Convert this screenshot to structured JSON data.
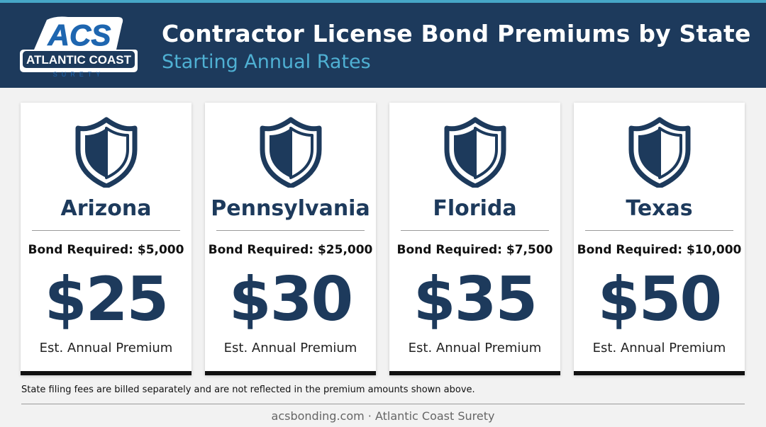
{
  "header": {
    "title": "Contractor License Bond Premiums by State",
    "subtitle": "Starting Annual Rates",
    "logo": {
      "monogram": "ACS",
      "name": "ATLANTIC COAST",
      "tagline": "SURETY"
    }
  },
  "cards": [
    {
      "state": "Arizona",
      "bond_required": "Bond Required: $5,000",
      "premium": "$25",
      "premium_label": "Est. Annual Premium"
    },
    {
      "state": "Pennsylvania",
      "bond_required": "Bond Required: $25,000",
      "premium": "$30",
      "premium_label": "Est. Annual Premium"
    },
    {
      "state": "Florida",
      "bond_required": "Bond Required: $7,500",
      "premium": "$35",
      "premium_label": "Est. Annual Premium"
    },
    {
      "state": "Texas",
      "bond_required": "Bond Required: $10,000",
      "premium": "$50",
      "premium_label": "Est. Annual Premium"
    }
  ],
  "note": "State filing fees are billed separately and are not reflected in the premium amounts shown above.",
  "footer": "acsbonding.com · Atlantic Coast Surety",
  "colors": {
    "header_bg": "#1d3a5c",
    "accent": "#4fb0d3",
    "navy": "#1d3a5c",
    "card_bg": "#ffffff"
  },
  "icons": {
    "card_icon": "shield-icon",
    "logo": "acs-logo"
  }
}
